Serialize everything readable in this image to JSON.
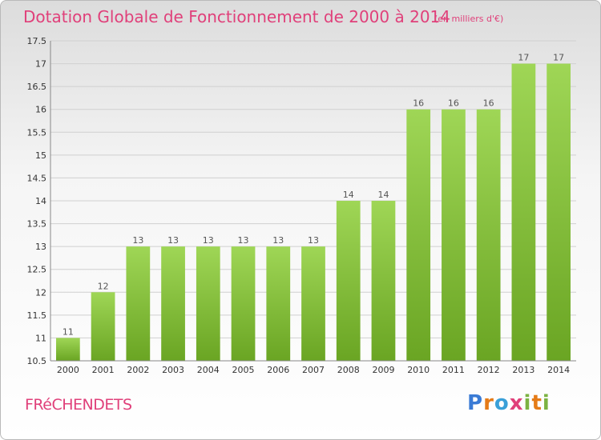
{
  "header": {
    "title": "Dotation Globale de Fonctionnement de 2000 à 2014",
    "subtitle": "(en milliers d'€)"
  },
  "footer": {
    "commune": "FRéCHENDETS",
    "logo": "Proxiti"
  },
  "colors": {
    "title": "#e0407a",
    "bar_light": "#9fd656",
    "bar_dark": "#6aa523",
    "grid": "#d0d0d0",
    "axis_text": "#333333"
  },
  "chart_data": {
    "type": "bar",
    "categories": [
      "2000",
      "2001",
      "2002",
      "2003",
      "2004",
      "2005",
      "2006",
      "2007",
      "2008",
      "2009",
      "2010",
      "2011",
      "2012",
      "2013",
      "2014"
    ],
    "values": [
      11,
      12,
      13,
      13,
      13,
      13,
      13,
      13,
      14,
      14,
      16,
      16,
      16,
      17,
      17
    ],
    "data_labels": [
      "11",
      "12",
      "13",
      "13",
      "13",
      "13",
      "13",
      "13",
      "14",
      "14",
      "16",
      "16",
      "16",
      "17",
      "17"
    ],
    "title": "Dotation Globale de Fonctionnement de 2000 à 2014",
    "subtitle": "(en milliers d'€)",
    "xlabel": "",
    "ylabel": "",
    "ylim": [
      10.5,
      17.5
    ],
    "yticks": [
      10.5,
      11,
      11.5,
      12,
      12.5,
      13,
      13.5,
      14,
      14.5,
      15,
      15.5,
      16,
      16.5,
      17,
      17.5
    ],
    "ytick_labels": [
      "10.5",
      "11",
      "11.5",
      "12",
      "12.5",
      "13",
      "13.5",
      "14",
      "14.5",
      "15",
      "15.5",
      "16",
      "16.5",
      "17",
      "17.5"
    ],
    "grid": true,
    "legend": "none"
  }
}
